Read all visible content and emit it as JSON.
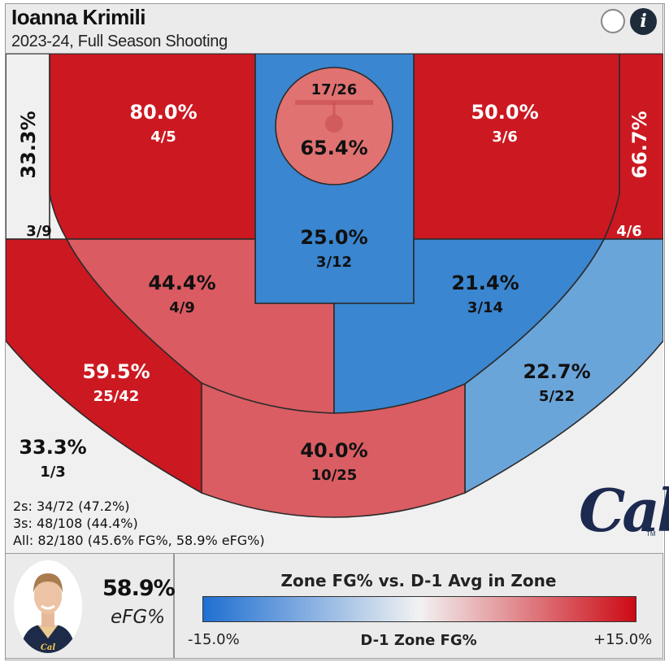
{
  "header": {
    "title": "Ioanna Krimili",
    "subtitle": "2023-24, Full Season Shooting"
  },
  "icons": {
    "toggle": "toggle-circle-icon",
    "info": "info-icon",
    "info_glyph": "i"
  },
  "chart_data": {
    "type": "heatmap",
    "zones": [
      {
        "id": "left-corner-3",
        "pct": "33.3%",
        "made_att": "1/3",
        "color": "#f0f0f0"
      },
      {
        "id": "left-wing-3",
        "pct": "59.5%",
        "made_att": "25/42",
        "color": "#cc1821"
      },
      {
        "id": "top-3",
        "pct": "40.0%",
        "made_att": "10/25",
        "color": "#d95d62"
      },
      {
        "id": "right-wing-3",
        "pct": "22.7%",
        "made_att": "5/22",
        "color": "#6aa5da"
      },
      {
        "id": "right-corner-3",
        "pct": "",
        "made_att": "",
        "color": "#f0f0f0"
      },
      {
        "id": "left-mid-wing",
        "pct": "44.4%",
        "made_att": "4/9",
        "color": "#da5b61"
      },
      {
        "id": "right-mid-wing",
        "pct": "21.4%",
        "made_att": "3/14",
        "color": "#3a86d0"
      },
      {
        "id": "left-baseline-mid",
        "pct": "80.0%",
        "made_att": "4/5",
        "color": "#cc1821"
      },
      {
        "id": "right-baseline-mid",
        "pct": "50.0%",
        "made_att": "3/6",
        "color": "#cc1821"
      },
      {
        "id": "paint",
        "pct": "25.0%",
        "made_att": "3/12",
        "color": "#3a86d0"
      },
      {
        "id": "restricted",
        "pct": "65.4%",
        "made_att": "17/26",
        "color": "#e07272"
      },
      {
        "id": "left-corner-long",
        "pct": "33.3%",
        "made_att": "3/9",
        "color": "#f0f0f0"
      },
      {
        "id": "right-corner-long",
        "pct": "66.7%",
        "made_att": "4/6",
        "color": "#cc1821"
      }
    ],
    "legend": {
      "title": "Zone FG% vs. D-1 Avg in Zone",
      "min_label": "-15.0%",
      "max_label": "+15.0%",
      "axis_label": "D-1 Zone FG%",
      "low_color": "#1f6fd1",
      "mid_color": "#f2f2f2",
      "high_color": "#cc0a14"
    }
  },
  "totals": {
    "twos": "2s: 34/72 (47.2%)",
    "threes": "3s: 48/108 (44.4%)",
    "all": "All: 82/180 (45.6% FG%, 58.9% eFG%)"
  },
  "logo": {
    "text": "Cal",
    "tm": "TM",
    "color": "#1c2a50"
  },
  "efg": {
    "value": "58.9%",
    "label": "eFG%"
  }
}
